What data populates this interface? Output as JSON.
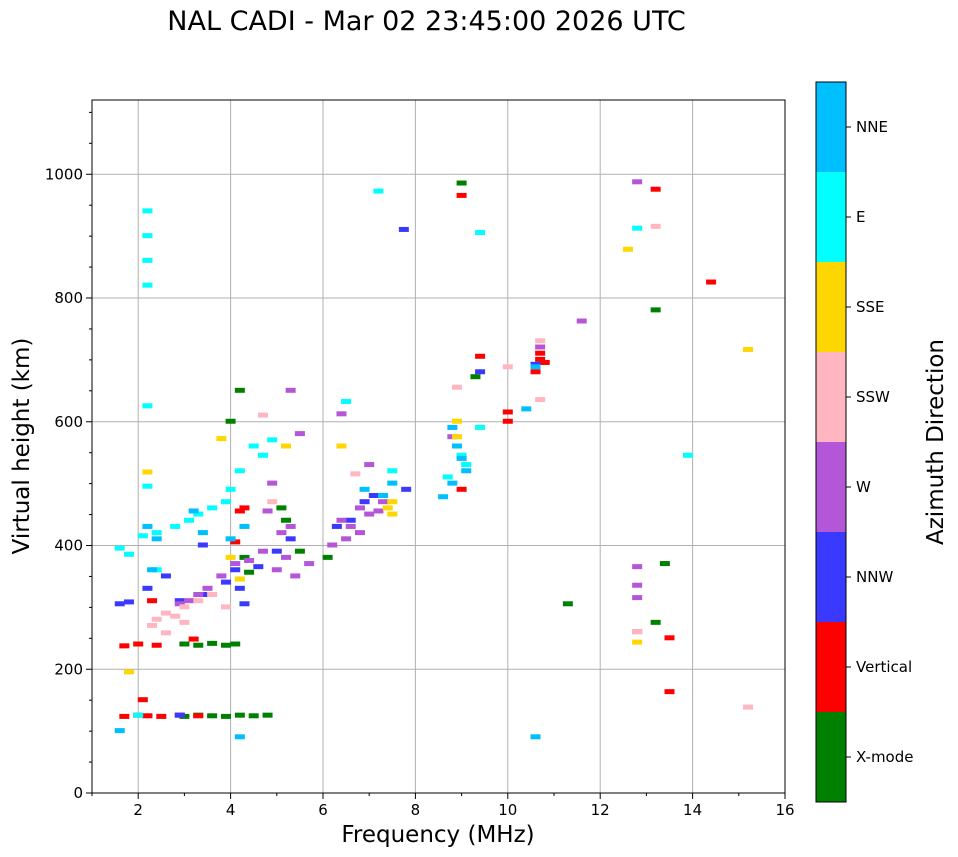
{
  "chart_data": {
    "type": "scatter",
    "title": "NAL CADI - Mar 02 23:45:00 2026 UTC",
    "xlabel": "Frequency (MHz)",
    "ylabel": "Virtual height (km)",
    "xlim": [
      1,
      16
    ],
    "ylim": [
      0,
      1120
    ],
    "xticks": [
      "2",
      "4",
      "6",
      "8",
      "10",
      "12",
      "14",
      "16"
    ],
    "yticks": [
      "0",
      "200",
      "400",
      "600",
      "800",
      "1000"
    ],
    "grid": true,
    "colorbar": {
      "label": "Azimuth Direction",
      "categories": [
        {
          "name": "X-mode",
          "color": "#008000"
        },
        {
          "name": "Vertical",
          "color": "#ff0000"
        },
        {
          "name": "NNW",
          "color": "#3a3aff"
        },
        {
          "name": "W",
          "color": "#b456d8"
        },
        {
          "name": "SSW",
          "color": "#ffb6c1"
        },
        {
          "name": "SSE",
          "color": "#ffd700"
        },
        {
          "name": "E",
          "color": "#00ffff"
        },
        {
          "name": "NNE",
          "color": "#00bfff"
        }
      ]
    },
    "series": [
      {
        "name": "X-mode",
        "points": [
          [
            3.0,
            123
          ],
          [
            3.3,
            125
          ],
          [
            3.6,
            124
          ],
          [
            3.9,
            123
          ],
          [
            4.2,
            125
          ],
          [
            4.5,
            124
          ],
          [
            4.8,
            125
          ],
          [
            3.0,
            240
          ],
          [
            3.3,
            238
          ],
          [
            3.6,
            241
          ],
          [
            3.9,
            238
          ],
          [
            4.1,
            240
          ],
          [
            4.0,
            600
          ],
          [
            4.2,
            650
          ],
          [
            5.1,
            460
          ],
          [
            5.2,
            440
          ],
          [
            5.5,
            390
          ],
          [
            4.3,
            380
          ],
          [
            13.4,
            370
          ],
          [
            13.2,
            780
          ],
          [
            11.3,
            305
          ],
          [
            13.2,
            275
          ],
          [
            9.3,
            672
          ],
          [
            9.0,
            985
          ],
          [
            4.4,
            356
          ],
          [
            6.1,
            380
          ]
        ]
      },
      {
        "name": "Vertical",
        "points": [
          [
            1.7,
            123
          ],
          [
            2.0,
            125
          ],
          [
            2.2,
            124
          ],
          [
            2.5,
            123
          ],
          [
            2.9,
            125
          ],
          [
            3.3,
            124
          ],
          [
            1.7,
            237
          ],
          [
            2.0,
            240
          ],
          [
            2.4,
            238
          ],
          [
            2.1,
            150
          ],
          [
            4.1,
            405
          ],
          [
            4.2,
            455
          ],
          [
            4.3,
            460
          ],
          [
            9.0,
            965
          ],
          [
            9.0,
            490
          ],
          [
            9.4,
            705
          ],
          [
            10.0,
            615
          ],
          [
            10.0,
            600
          ],
          [
            10.6,
            680
          ],
          [
            10.7,
            700
          ],
          [
            10.8,
            695
          ],
          [
            10.7,
            710
          ],
          [
            13.5,
            250
          ],
          [
            13.5,
            163
          ],
          [
            13.2,
            975
          ],
          [
            14.4,
            825
          ],
          [
            2.3,
            310
          ],
          [
            3.2,
            248
          ]
        ]
      },
      {
        "name": "NNW",
        "points": [
          [
            1.6,
            305
          ],
          [
            1.8,
            308
          ],
          [
            2.2,
            330
          ],
          [
            2.6,
            350
          ],
          [
            2.9,
            310
          ],
          [
            3.5,
            320
          ],
          [
            3.9,
            340
          ],
          [
            4.1,
            360
          ],
          [
            4.3,
            305
          ],
          [
            4.6,
            365
          ],
          [
            5.0,
            390
          ],
          [
            5.3,
            410
          ],
          [
            6.3,
            430
          ],
          [
            6.6,
            440
          ],
          [
            6.9,
            470
          ],
          [
            7.1,
            480
          ],
          [
            7.8,
            490
          ],
          [
            7.75,
            910
          ],
          [
            9.4,
            680
          ],
          [
            10.6,
            692
          ],
          [
            3.4,
            400
          ],
          [
            4.2,
            330
          ],
          [
            2.9,
            125
          ]
        ]
      },
      {
        "name": "W",
        "points": [
          [
            2.9,
            305
          ],
          [
            3.1,
            310
          ],
          [
            3.3,
            320
          ],
          [
            3.5,
            330
          ],
          [
            3.8,
            350
          ],
          [
            4.1,
            370
          ],
          [
            4.4,
            375
          ],
          [
            4.7,
            390
          ],
          [
            5.0,
            360
          ],
          [
            5.2,
            380
          ],
          [
            5.4,
            350
          ],
          [
            5.7,
            370
          ],
          [
            4.9,
            500
          ],
          [
            5.1,
            420
          ],
          [
            5.3,
            430
          ],
          [
            4.8,
            455
          ],
          [
            6.4,
            440
          ],
          [
            6.6,
            430
          ],
          [
            6.8,
            460
          ],
          [
            7.0,
            450
          ],
          [
            7.2,
            455
          ],
          [
            6.5,
            410
          ],
          [
            6.8,
            420
          ],
          [
            7.3,
            470
          ],
          [
            6.4,
            612
          ],
          [
            5.3,
            650
          ],
          [
            5.5,
            580
          ],
          [
            8.8,
            575
          ],
          [
            10.7,
            720
          ],
          [
            11.6,
            762
          ],
          [
            12.8,
            987
          ],
          [
            12.8,
            365
          ],
          [
            12.8,
            335
          ],
          [
            12.8,
            315
          ],
          [
            12.8,
            260
          ],
          [
            7.0,
            530
          ],
          [
            6.2,
            400
          ]
        ]
      },
      {
        "name": "SSW",
        "points": [
          [
            2.3,
            270
          ],
          [
            2.4,
            280
          ],
          [
            2.6,
            290
          ],
          [
            2.8,
            285
          ],
          [
            3.0,
            300
          ],
          [
            3.3,
            310
          ],
          [
            3.6,
            320
          ],
          [
            3.9,
            300
          ],
          [
            3.0,
            275
          ],
          [
            4.9,
            470
          ],
          [
            6.7,
            515
          ],
          [
            4.7,
            610
          ],
          [
            8.9,
            655
          ],
          [
            10.0,
            688
          ],
          [
            10.7,
            730
          ],
          [
            10.7,
            635
          ],
          [
            13.2,
            915
          ],
          [
            15.2,
            138
          ],
          [
            2.6,
            258
          ],
          [
            12.8,
            260
          ]
        ]
      },
      {
        "name": "SSE",
        "points": [
          [
            2.2,
            518
          ],
          [
            3.8,
            572
          ],
          [
            4.0,
            380
          ],
          [
            4.2,
            345
          ],
          [
            5.2,
            560
          ],
          [
            6.4,
            560
          ],
          [
            7.5,
            450
          ],
          [
            7.4,
            460
          ],
          [
            7.5,
            470
          ],
          [
            8.9,
            600
          ],
          [
            8.9,
            575
          ],
          [
            12.6,
            878
          ],
          [
            15.2,
            716
          ],
          [
            12.8,
            243
          ],
          [
            1.8,
            195
          ]
        ]
      },
      {
        "name": "E",
        "points": [
          [
            1.6,
            395
          ],
          [
            1.8,
            385
          ],
          [
            2.1,
            415
          ],
          [
            2.4,
            420
          ],
          [
            2.8,
            430
          ],
          [
            3.1,
            440
          ],
          [
            3.3,
            450
          ],
          [
            3.6,
            460
          ],
          [
            3.9,
            470
          ],
          [
            4.0,
            490
          ],
          [
            4.2,
            520
          ],
          [
            4.5,
            560
          ],
          [
            4.7,
            545
          ],
          [
            4.9,
            570
          ],
          [
            2.2,
            940
          ],
          [
            2.2,
            900
          ],
          [
            2.2,
            860
          ],
          [
            2.2,
            820
          ],
          [
            2.2,
            625
          ],
          [
            7.2,
            972
          ],
          [
            9.4,
            905
          ],
          [
            8.9,
            560
          ],
          [
            9.0,
            545
          ],
          [
            9.1,
            530
          ],
          [
            8.7,
            510
          ],
          [
            9.4,
            590
          ],
          [
            12.8,
            912
          ],
          [
            13.9,
            545
          ],
          [
            6.5,
            632
          ],
          [
            7.5,
            520
          ],
          [
            2.4,
            360
          ],
          [
            2.0,
            125
          ],
          [
            2.2,
            495
          ]
        ]
      },
      {
        "name": "NNE",
        "points": [
          [
            2.2,
            430
          ],
          [
            2.4,
            410
          ],
          [
            2.3,
            360
          ],
          [
            3.2,
            455
          ],
          [
            3.4,
            420
          ],
          [
            4.0,
            410
          ],
          [
            4.3,
            430
          ],
          [
            8.8,
            590
          ],
          [
            8.9,
            560
          ],
          [
            9.0,
            540
          ],
          [
            9.1,
            520
          ],
          [
            8.8,
            500
          ],
          [
            7.5,
            500
          ],
          [
            6.9,
            490
          ],
          [
            10.6,
            90
          ],
          [
            10.4,
            620
          ],
          [
            10.6,
            688
          ],
          [
            8.6,
            478
          ],
          [
            4.2,
            90
          ],
          [
            1.6,
            100
          ],
          [
            7.3,
            480
          ]
        ]
      }
    ]
  }
}
